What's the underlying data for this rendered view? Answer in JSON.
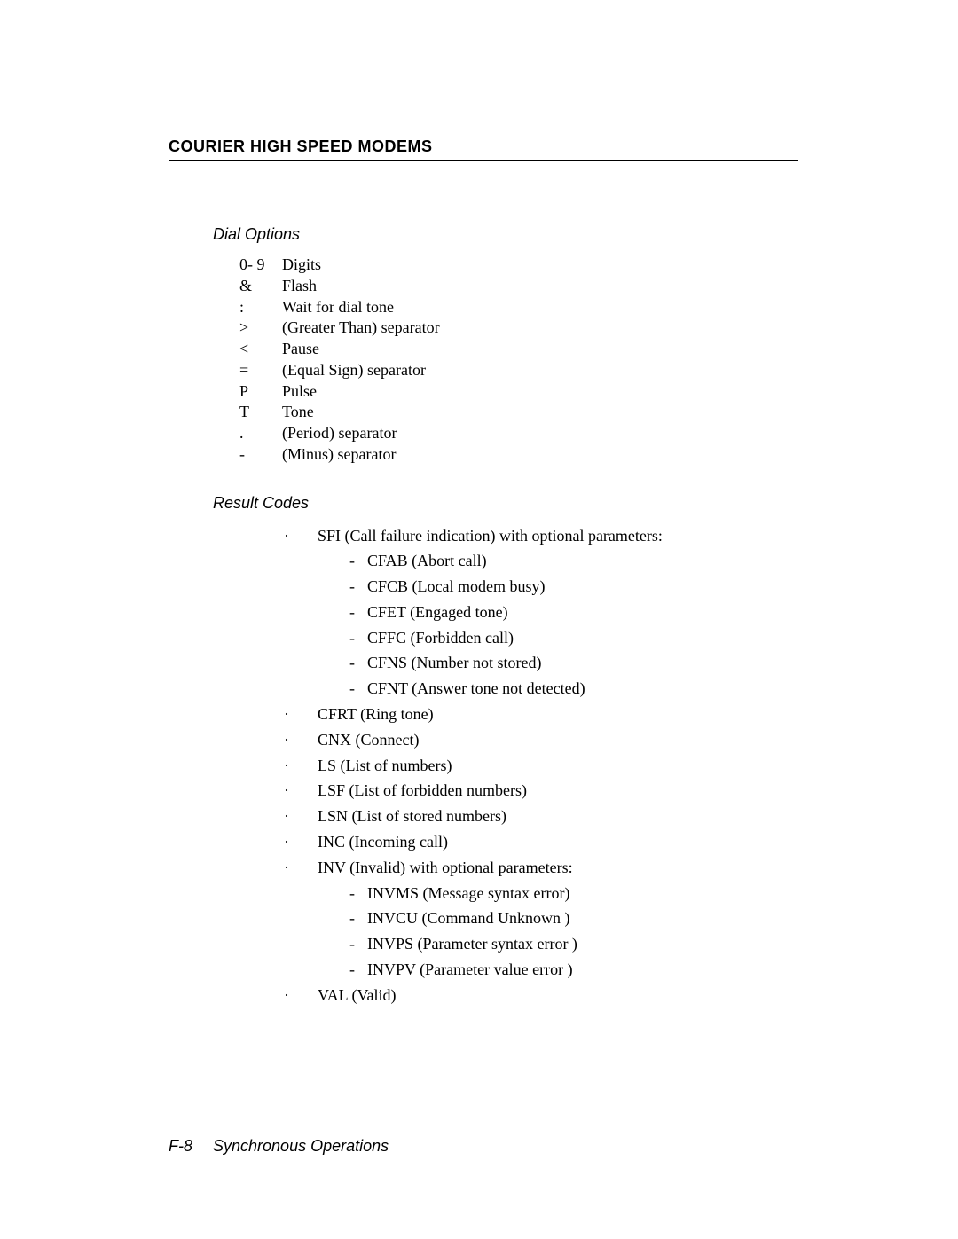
{
  "header": "COURIER HIGH SPEED MODEMS",
  "dialOptions": {
    "title": "Dial Options",
    "rows": [
      {
        "sym": "0- 9",
        "desc": "Digits"
      },
      {
        "sym": "&",
        "desc": "Flash"
      },
      {
        "sym": ":",
        "desc": "Wait for dial tone"
      },
      {
        "sym": ">",
        "desc": "(Greater Than) separator"
      },
      {
        "sym": "<",
        "desc": "Pause"
      },
      {
        "sym": "=",
        "desc": "(Equal Sign) separator"
      },
      {
        "sym": "P",
        "desc": "Pulse"
      },
      {
        "sym": "T",
        "desc": "Tone"
      },
      {
        "sym": ".",
        "desc": "(Period) separator"
      },
      {
        "sym": "-",
        "desc": "(Minus) separator"
      }
    ]
  },
  "resultCodes": {
    "title": "Result Codes",
    "items": [
      {
        "text": "SFI (Call failure indication) with optional parameters:",
        "subs": [
          "CFAB (Abort call)",
          "CFCB (Local modem busy)",
          "CFET (Engaged tone)",
          "CFFC (Forbidden call)",
          "CFNS (Number not stored)",
          "CFNT (Answer tone not detected)"
        ]
      },
      {
        "text": "CFRT (Ring tone)",
        "subs": []
      },
      {
        "text": "CNX (Connect)",
        "subs": []
      },
      {
        "text": "LS (List of numbers)",
        "subs": []
      },
      {
        "text": "LSF (List of forbidden numbers)",
        "subs": []
      },
      {
        "text": "LSN (List of stored numbers)",
        "subs": []
      },
      {
        "text": "INC (Incoming call)",
        "subs": []
      },
      {
        "text": "INV (Invalid) with optional parameters:",
        "subs": [
          "INVMS (Message syntax error)",
          "INVCU (Command Unknown )",
          "INVPS (Parameter syntax error )",
          "INVPV (Parameter value error )"
        ]
      },
      {
        "text": "VAL (Valid)",
        "subs": []
      }
    ]
  },
  "footer": {
    "page": "F-8",
    "title": "Synchronous Operations"
  },
  "bullets": {
    "main": "·",
    "sub": "-"
  }
}
